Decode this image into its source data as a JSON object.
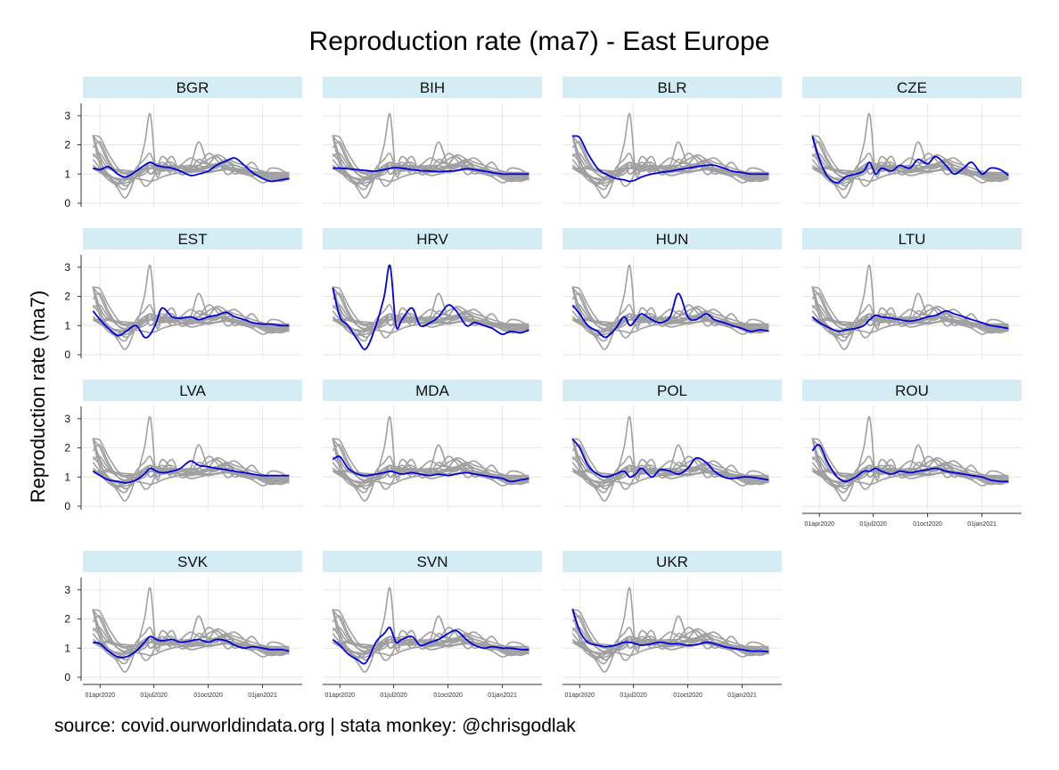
{
  "chart_data": {
    "type": "line",
    "title": "Reproduction rate (ma7) - East Europe",
    "ylabel": "Reproduction rate (ma7)",
    "xlabel": "",
    "source": "source: covid.ourworldindata.org | stata monkey: @chrisgodlak",
    "ylim": [
      0,
      3.3
    ],
    "yticks": [
      "0",
      "1",
      "2",
      "3"
    ],
    "xlim": [
      "2020-03-15",
      "2021-02-25"
    ],
    "xticks": [
      "01apr2020",
      "01jul2020",
      "01oct2020",
      "01jan2021"
    ],
    "grid": true,
    "colors": {
      "highlight": "#0000e0",
      "background_series": "#a0a0a0",
      "strip": "#d4ecf3"
    },
    "dates": [
      "2020-03-20",
      "2020-04-01",
      "2020-04-15",
      "2020-05-01",
      "2020-05-15",
      "2020-06-01",
      "2020-06-15",
      "2020-06-25",
      "2020-07-05",
      "2020-07-15",
      "2020-08-01",
      "2020-08-15",
      "2020-09-01",
      "2020-09-15",
      "2020-10-01",
      "2020-10-15",
      "2020-11-01",
      "2020-11-15",
      "2020-12-01",
      "2020-12-15",
      "2021-01-01",
      "2021-01-15",
      "2021-02-01",
      "2021-02-15"
    ],
    "series": [
      {
        "name": "BGR",
        "values": [
          1.2,
          1.15,
          1.25,
          1.0,
          0.9,
          1.1,
          1.3,
          1.4,
          1.3,
          1.25,
          1.2,
          1.1,
          0.95,
          1.0,
          1.1,
          1.3,
          1.45,
          1.55,
          1.3,
          1.05,
          0.85,
          0.75,
          0.8,
          0.85
        ]
      },
      {
        "name": "BIH",
        "values": [
          1.2,
          1.2,
          1.18,
          1.15,
          1.12,
          1.1,
          1.15,
          1.2,
          1.22,
          1.2,
          1.15,
          1.12,
          1.1,
          1.08,
          1.1,
          1.12,
          1.18,
          1.15,
          1.1,
          1.05,
          1.0,
          1.0,
          1.0,
          1.0
        ]
      },
      {
        "name": "BLR",
        "values": [
          2.3,
          2.25,
          1.7,
          1.2,
          1.0,
          0.85,
          0.8,
          0.75,
          0.8,
          0.9,
          1.0,
          1.05,
          1.1,
          1.15,
          1.2,
          1.25,
          1.3,
          1.3,
          1.2,
          1.1,
          1.05,
          1.0,
          1.0,
          1.0
        ]
      },
      {
        "name": "CZE",
        "values": [
          2.3,
          1.5,
          0.9,
          0.7,
          0.9,
          1.0,
          1.1,
          1.4,
          1.0,
          1.2,
          1.1,
          1.3,
          1.2,
          1.5,
          1.35,
          1.6,
          1.3,
          1.0,
          1.2,
          1.4,
          1.0,
          1.2,
          1.15,
          0.95
        ]
      },
      {
        "name": "EST",
        "values": [
          1.5,
          1.2,
          0.9,
          0.65,
          0.8,
          1.0,
          0.6,
          0.7,
          1.1,
          1.6,
          1.3,
          1.25,
          1.3,
          1.2,
          1.3,
          1.35,
          1.45,
          1.3,
          1.2,
          1.1,
          1.05,
          1.05,
          1.0,
          1.0
        ]
      },
      {
        "name": "HRV",
        "values": [
          2.3,
          1.3,
          1.0,
          0.5,
          0.2,
          1.0,
          2.0,
          3.05,
          1.0,
          1.2,
          1.6,
          1.0,
          1.1,
          1.3,
          1.7,
          1.5,
          1.0,
          1.1,
          1.0,
          0.9,
          0.7,
          0.8,
          0.75,
          0.85
        ]
      },
      {
        "name": "HUN",
        "values": [
          1.7,
          1.4,
          1.0,
          0.8,
          0.6,
          0.9,
          1.3,
          1.0,
          1.2,
          1.4,
          1.2,
          1.1,
          1.3,
          2.1,
          1.3,
          1.2,
          1.4,
          1.2,
          1.1,
          1.0,
          0.9,
          0.8,
          0.85,
          0.8
        ]
      },
      {
        "name": "LTU",
        "values": [
          1.3,
          1.1,
          0.95,
          0.8,
          0.85,
          0.9,
          1.0,
          1.2,
          1.35,
          1.3,
          1.25,
          1.2,
          1.15,
          1.2,
          1.3,
          1.35,
          1.5,
          1.4,
          1.3,
          1.2,
          1.1,
          1.0,
          0.95,
          0.9
        ]
      },
      {
        "name": "LVA",
        "values": [
          1.2,
          1.05,
          0.9,
          0.85,
          0.8,
          0.9,
          1.1,
          1.3,
          1.2,
          1.15,
          1.2,
          1.3,
          1.55,
          1.4,
          1.35,
          1.3,
          1.25,
          1.2,
          1.15,
          1.1,
          1.05,
          1.05,
          1.05,
          1.05
        ]
      },
      {
        "name": "MDA",
        "values": [
          1.6,
          1.7,
          1.3,
          1.1,
          1.05,
          1.1,
          1.15,
          1.2,
          1.15,
          1.1,
          1.15,
          1.1,
          1.05,
          1.1,
          1.05,
          1.1,
          1.15,
          1.1,
          1.05,
          1.0,
          0.95,
          0.85,
          0.9,
          0.95
        ]
      },
      {
        "name": "POL",
        "values": [
          2.3,
          2.0,
          1.4,
          1.1,
          1.0,
          1.1,
          1.2,
          1.0,
          1.1,
          1.3,
          1.0,
          1.25,
          1.2,
          1.1,
          1.3,
          1.65,
          1.5,
          1.2,
          1.0,
          0.95,
          1.0,
          1.0,
          0.95,
          0.9
        ]
      },
      {
        "name": "ROU",
        "values": [
          1.9,
          2.1,
          1.5,
          1.0,
          0.85,
          1.0,
          1.2,
          1.2,
          1.3,
          1.2,
          1.1,
          1.2,
          1.15,
          1.2,
          1.25,
          1.3,
          1.2,
          1.15,
          1.1,
          1.05,
          1.0,
          0.9,
          0.85,
          0.85
        ]
      },
      {
        "name": "SVK",
        "values": [
          1.2,
          1.15,
          0.9,
          0.7,
          0.7,
          0.9,
          1.2,
          1.4,
          1.3,
          1.25,
          1.3,
          1.2,
          1.25,
          1.3,
          1.2,
          1.3,
          1.25,
          1.1,
          1.0,
          1.05,
          1.0,
          0.95,
          0.95,
          0.9
        ]
      },
      {
        "name": "SVN",
        "values": [
          1.3,
          1.1,
          0.8,
          0.6,
          0.5,
          1.2,
          1.5,
          1.7,
          1.2,
          1.3,
          1.4,
          1.1,
          1.2,
          1.3,
          1.5,
          1.6,
          1.3,
          1.1,
          1.0,
          1.05,
          1.0,
          1.0,
          0.95,
          0.95
        ]
      },
      {
        "name": "UKR",
        "values": [
          2.35,
          1.6,
          1.2,
          1.1,
          1.05,
          1.1,
          1.2,
          1.2,
          1.15,
          1.1,
          1.15,
          1.2,
          1.15,
          1.15,
          1.1,
          1.12,
          1.2,
          1.15,
          1.05,
          1.0,
          0.95,
          0.9,
          0.9,
          0.88
        ]
      }
    ]
  }
}
